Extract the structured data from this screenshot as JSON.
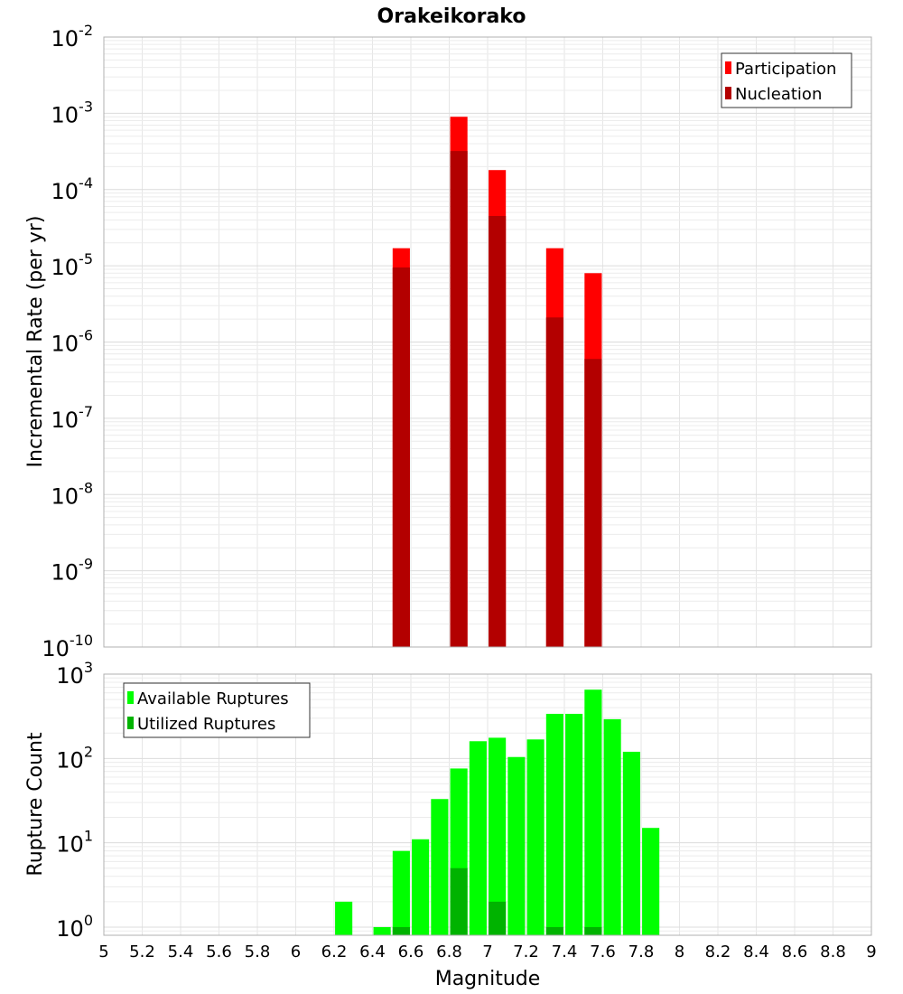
{
  "figure": {
    "title": "Orakeikorako",
    "xlabel": "Magnitude"
  },
  "chart_data": [
    {
      "type": "bar",
      "title": "Orakeikorako",
      "xlabel": "Magnitude",
      "ylabel": "Incremental Rate (per yr)",
      "yscale": "log",
      "ylim": [
        1e-10,
        0.01
      ],
      "xlim": [
        5,
        9
      ],
      "grid": true,
      "legend": "top-right",
      "bar_width": 0.09,
      "x_ticks": [
        "5",
        "5.2",
        "5.4",
        "5.6",
        "5.8",
        "6",
        "6.2",
        "6.4",
        "6.6",
        "6.8",
        "7",
        "7.2",
        "7.4",
        "7.6",
        "7.8",
        "8",
        "8.2",
        "8.4",
        "8.6",
        "8.8",
        "9"
      ],
      "y_ticks": [
        {
          "base": "10",
          "exp": "-10",
          "value": 1e-10
        },
        {
          "base": "10",
          "exp": "-9",
          "value": 1e-09
        },
        {
          "base": "10",
          "exp": "-8",
          "value": 1e-08
        },
        {
          "base": "10",
          "exp": "-7",
          "value": 1e-07
        },
        {
          "base": "10",
          "exp": "-6",
          "value": 1e-06
        },
        {
          "base": "10",
          "exp": "-5",
          "value": 1e-05
        },
        {
          "base": "10",
          "exp": "-4",
          "value": 0.0001
        },
        {
          "base": "10",
          "exp": "-3",
          "value": 0.001
        },
        {
          "base": "10",
          "exp": "-2",
          "value": 0.01
        }
      ],
      "series": [
        {
          "name": "Participation",
          "color": "#ff0000",
          "points": [
            {
              "x": 6.55,
              "y": 1.7e-05
            },
            {
              "x": 6.85,
              "y": 0.0009
            },
            {
              "x": 7.05,
              "y": 0.00018
            },
            {
              "x": 7.35,
              "y": 1.7e-05
            },
            {
              "x": 7.55,
              "y": 8e-06
            }
          ]
        },
        {
          "name": "Nucleation",
          "color": "#b30000",
          "points": [
            {
              "x": 6.55,
              "y": 9.5e-06
            },
            {
              "x": 6.85,
              "y": 0.00032
            },
            {
              "x": 7.05,
              "y": 4.5e-05
            },
            {
              "x": 7.35,
              "y": 2.1e-06
            },
            {
              "x": 7.55,
              "y": 6e-07
            }
          ]
        }
      ]
    },
    {
      "type": "bar",
      "xlabel": "Magnitude",
      "ylabel": "Rupture Count",
      "yscale": "log",
      "ylim": [
        0.8,
        1000
      ],
      "xlim": [
        5,
        9
      ],
      "grid": true,
      "legend": "top-left",
      "bar_width": 0.09,
      "x_ticks": [
        "5",
        "5.2",
        "5.4",
        "5.6",
        "5.8",
        "6",
        "6.2",
        "6.4",
        "6.6",
        "6.8",
        "7",
        "7.2",
        "7.4",
        "7.6",
        "7.8",
        "8",
        "8.2",
        "8.4",
        "8.6",
        "8.8",
        "9"
      ],
      "y_ticks": [
        {
          "base": "10",
          "exp": "0",
          "value": 1
        },
        {
          "base": "10",
          "exp": "1",
          "value": 10
        },
        {
          "base": "10",
          "exp": "2",
          "value": 100
        },
        {
          "base": "10",
          "exp": "3",
          "value": 1000
        }
      ],
      "series": [
        {
          "name": "Available Ruptures",
          "color": "#00ff00",
          "points": [
            {
              "x": 6.25,
              "y": 2
            },
            {
              "x": 6.45,
              "y": 1
            },
            {
              "x": 6.55,
              "y": 8
            },
            {
              "x": 6.65,
              "y": 11
            },
            {
              "x": 6.75,
              "y": 33
            },
            {
              "x": 6.85,
              "y": 76
            },
            {
              "x": 6.95,
              "y": 160
            },
            {
              "x": 7.05,
              "y": 176
            },
            {
              "x": 7.15,
              "y": 104
            },
            {
              "x": 7.25,
              "y": 168
            },
            {
              "x": 7.35,
              "y": 338
            },
            {
              "x": 7.45,
              "y": 338
            },
            {
              "x": 7.55,
              "y": 654
            },
            {
              "x": 7.65,
              "y": 292
            },
            {
              "x": 7.75,
              "y": 120
            },
            {
              "x": 7.85,
              "y": 15
            }
          ]
        },
        {
          "name": "Utilized Ruptures",
          "color": "#00b300",
          "points": [
            {
              "x": 6.55,
              "y": 1
            },
            {
              "x": 6.85,
              "y": 5
            },
            {
              "x": 7.05,
              "y": 2
            },
            {
              "x": 7.35,
              "y": 1
            },
            {
              "x": 7.55,
              "y": 1
            }
          ]
        }
      ]
    }
  ]
}
